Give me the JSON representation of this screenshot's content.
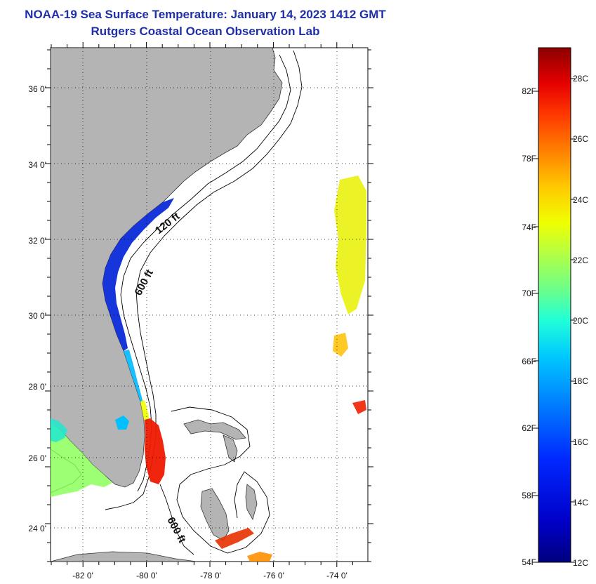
{
  "header": {
    "title": "NOAA-19 Sea Surface Temperature:  January 14, 2023 1412 GMT",
    "subtitle": "Rutgers Coastal Ocean Observation Lab"
  },
  "map": {
    "lat_range": [
      23.0,
      37.0
    ],
    "lon_range": [
      -83.0,
      -73.0
    ],
    "lat_ticks": [
      "36 0'",
      "34 0'",
      "32 0'",
      "30 0'",
      "28 0'",
      "26 0'",
      "24 0'"
    ],
    "lon_ticks": [
      "-82 0'",
      "-80 0'",
      "-78 0'",
      "-76 0'",
      "-74 0'"
    ],
    "grid": "dotted",
    "land_color": "#b4b4b4",
    "isobaths": [
      "120 ft",
      "600 ft",
      "600 ft"
    ]
  },
  "colorbar": {
    "fahrenheit_labels": [
      "82F",
      "78F",
      "74F",
      "70F",
      "66F",
      "62F",
      "58F",
      "54F"
    ],
    "celsius_labels": [
      "28C",
      "26C",
      "24C",
      "22C",
      "20C",
      "18C",
      "16C",
      "14C",
      "12C"
    ],
    "range_c": [
      12,
      29
    ],
    "colors": [
      "#00007f",
      "#0000c8",
      "#0028ff",
      "#0078ff",
      "#00c8ff",
      "#20ffd8",
      "#6bff8a",
      "#b4ff44",
      "#f0ff00",
      "#ffc800",
      "#ff8000",
      "#ff3800",
      "#e60000",
      "#8c0000"
    ]
  }
}
